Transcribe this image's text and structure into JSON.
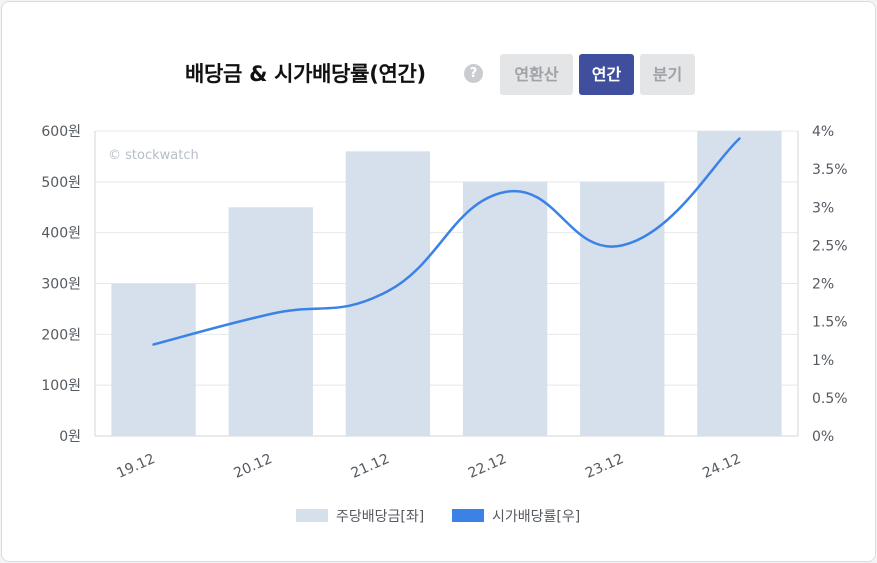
{
  "header": {
    "title": "배당금 & 시가배당률(연간)",
    "help_icon": "question-circle-icon",
    "help_symbol": "?",
    "tabs": [
      {
        "label": "연환산",
        "active": false
      },
      {
        "label": "연간",
        "active": true
      },
      {
        "label": "분기",
        "active": false
      }
    ]
  },
  "watermark": "© stockwatch",
  "colors": {
    "bar": "#d5e0ec",
    "line": "#3b82e6",
    "active_tab": "#3f4f9e",
    "inactive_tab": "#e4e5e7"
  },
  "chart_data": {
    "type": "bar",
    "categories": [
      "19.12",
      "20.12",
      "21.12",
      "22.12",
      "23.12",
      "24.12"
    ],
    "series": [
      {
        "name": "주당배당금[좌]",
        "type": "bar",
        "axis": "left",
        "values": [
          300,
          450,
          560,
          500,
          500,
          600
        ]
      },
      {
        "name": "시가배당률[우]",
        "type": "line",
        "axis": "right",
        "values": [
          1.2,
          1.6,
          1.9,
          3.2,
          2.5,
          3.9
        ]
      }
    ],
    "y_left": {
      "range": [
        0,
        600
      ],
      "ticks": [
        "0원",
        "100원",
        "200원",
        "300원",
        "400원",
        "500원",
        "600원"
      ]
    },
    "y_right": {
      "range": [
        0,
        4
      ],
      "ticks": [
        "0%",
        "0.5%",
        "1%",
        "1.5%",
        "2%",
        "2.5%",
        "3%",
        "3.5%",
        "4%"
      ]
    },
    "grid": true,
    "legend": "bottom"
  }
}
